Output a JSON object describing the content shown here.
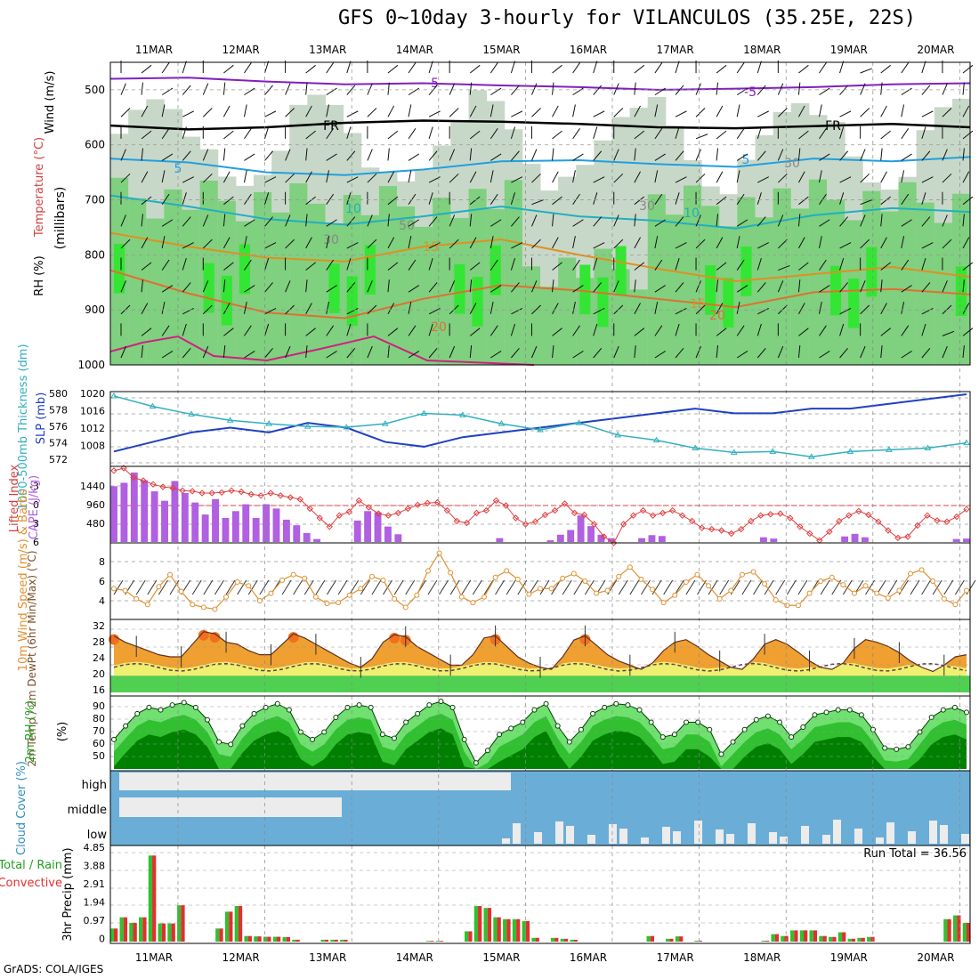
{
  "title": "GFS 0~10day 3-hourly for VILANCULOS (35.25E, 22S)",
  "credit": "GrADS: COLA/IGES",
  "dates": [
    "11MAR",
    "12MAR",
    "13MAR",
    "14MAR",
    "15MAR",
    "16MAR",
    "17MAR",
    "18MAR",
    "19MAR",
    "20MAR"
  ],
  "colors": {
    "grid": "#999999",
    "rh1": "#c8d8c8",
    "rh2": "#7fd07f",
    "rh3": "#33e633",
    "slp": "#2040c0",
    "thick": "#30b0c0",
    "li": "#e04040",
    "cape": "#b060e0",
    "wind": "#e09030",
    "temp_fill": "#f0a030",
    "temp_hot": "#f07020",
    "dew_fill": "#f0f070",
    "low_fill": "#50d050",
    "rh2m_dark": "#008000",
    "cloud_blue": "#6aaed8",
    "cloud_white": "#ececec",
    "precip_green": "#30c030",
    "precip_red": "#e03030",
    "purple": "#8020c0",
    "magenta": "#d02080"
  },
  "chart_data": [
    {
      "id": "upper_air",
      "type": "heatmap",
      "ylabel_parts": [
        "Wind (m/s)",
        "Temperature (°C)",
        "RH (%)"
      ],
      "ylabel_unit": "(millibars)",
      "yticks": [
        500,
        600,
        700,
        800,
        900,
        1000
      ],
      "ylim": [
        1000,
        450
      ],
      "isotherms": [
        {
          "label": "-5",
          "color": "#8020c0",
          "p": [
            480,
            478,
            485,
            490,
            488,
            492,
            495,
            500,
            498,
            495,
            490,
            488
          ]
        },
        {
          "label": "FR",
          "color": "#000000",
          "p": [
            565,
            572,
            568,
            560,
            556,
            558,
            562,
            568,
            570,
            566,
            562,
            568
          ]
        },
        {
          "label": "5",
          "color": "#20a0e0",
          "p": [
            625,
            632,
            650,
            655,
            645,
            630,
            628,
            635,
            640,
            625,
            630,
            622
          ]
        },
        {
          "label": "10",
          "color": "#20b0c0",
          "p": [
            692,
            712,
            735,
            745,
            730,
            712,
            730,
            738,
            752,
            728,
            715,
            722
          ]
        },
        {
          "label": "15",
          "color": "#e09020",
          "p": [
            760,
            785,
            805,
            812,
            785,
            772,
            800,
            825,
            848,
            835,
            822,
            840
          ]
        },
        {
          "label": "20",
          "color": "#e07030",
          "p": [
            828,
            870,
            905,
            915,
            880,
            855,
            865,
            880,
            895,
            868,
            862,
            872
          ]
        }
      ],
      "inline_labels": [
        "-5",
        "-5",
        "FR",
        "FR",
        "5",
        "5",
        "10",
        "10",
        "15",
        "15",
        "20",
        "20",
        "30",
        "30",
        "50",
        "30"
      ]
    },
    {
      "id": "slp_thickness",
      "type": "line",
      "y_left_label": "1000-500mb Thickness (dm)",
      "y_right_label": "SLP (mb)",
      "left_ticks": [
        "580",
        "578",
        "576",
        "574",
        "572"
      ],
      "right_ticks": [
        "1020",
        "1016",
        "1012",
        "1008"
      ],
      "series": [
        {
          "name": "SLP",
          "axis": "right",
          "values": [
            1008,
            1010,
            1012,
            1013,
            1012,
            1014,
            1013,
            1010,
            1009,
            1011,
            1012,
            1013,
            1014,
            1015,
            1016,
            1017,
            1016,
            1016,
            1017,
            1017,
            1018,
            1019,
            1020
          ]
        },
        {
          "name": "Thickness",
          "axis": "left",
          "values": [
            579.8,
            578.6,
            577.7,
            577.0,
            576.6,
            576.3,
            576.2,
            576.6,
            577.8,
            577.6,
            576.6,
            575.9,
            576.7,
            575.3,
            574.7,
            573.8,
            573.3,
            573.4,
            572.8,
            573.4,
            573.6,
            573.8,
            574.4
          ]
        }
      ]
    },
    {
      "id": "instability",
      "type": "bar",
      "y_left_label": "Lifted Index",
      "y_right_label": "CAPE (J/kg)",
      "left_ticks": [
        "-3",
        "0",
        "3",
        "6"
      ],
      "right_ticks": [
        "1440",
        "960",
        "480"
      ],
      "cape": [
        1300,
        1380,
        1620,
        1440,
        1180,
        960,
        1420,
        1140,
        920,
        640,
        1000,
        560,
        720,
        880,
        560,
        880,
        780,
        520,
        390,
        210,
        70,
        0,
        0,
        0,
        500,
        720,
        690,
        360,
        180,
        0,
        0,
        0,
        0,
        0,
        0,
        0,
        0,
        0,
        90,
        0,
        0,
        0,
        0,
        40,
        170,
        280,
        620,
        370,
        170,
        90,
        0,
        0,
        90,
        160,
        140,
        0,
        0,
        0,
        0,
        0,
        0,
        0,
        0,
        0,
        110,
        80,
        0,
        0,
        0,
        0,
        0,
        0,
        130,
        190,
        110,
        0,
        0,
        0,
        0,
        0,
        0,
        0,
        0,
        70,
        80
      ],
      "lifted_index": [
        -5.6,
        -6,
        -4.5,
        -4,
        -3.4,
        -3,
        -2.8,
        -2.4,
        -2.3,
        -2,
        -2,
        -2.1,
        -2.4,
        -2.2,
        -1.8,
        -1.6,
        -2,
        -1.6,
        -1.3,
        -1,
        0.5,
        2,
        3.4,
        1.6,
        1,
        -0.8,
        0.3,
        1.3,
        1.6,
        1.2,
        0.5,
        -0.1,
        -0.4,
        -0.5,
        0.8,
        2.5,
        2.8,
        1.2,
        0.8,
        -0.8,
        0,
        2,
        3,
        2.6,
        1.5,
        0.8,
        -0.3,
        1.2,
        1.5,
        3,
        5,
        6,
        3,
        1.6,
        0.8,
        1.6,
        1.2,
        0.8,
        1.6,
        2.5,
        3.6,
        3.8,
        4,
        4.5,
        3.8,
        2.5,
        1.6,
        1.4,
        1.3,
        2,
        3.4,
        4.5,
        5.6,
        4.2,
        2.5,
        1.6,
        0.9,
        1.5,
        2.6,
        4,
        5.2,
        5,
        3.2,
        1.6,
        2.4,
        2.6,
        1.8,
        0.6
      ]
    },
    {
      "id": "wind10m",
      "type": "line",
      "ylabel": "10m Wind Speed (m/s) & Barbs",
      "yticks": [
        "8",
        "6",
        "4"
      ],
      "values": [
        5.3,
        5.1,
        4.2,
        3.6,
        5.5,
        6.8,
        5,
        3.6,
        3.3,
        3.1,
        4.4,
        6,
        5.6,
        4,
        4.8,
        6.2,
        6.8,
        6.4,
        4.4,
        3.7,
        3.8,
        4.6,
        5.3,
        6.6,
        6.2,
        4.2,
        3.3,
        4.6,
        7.2,
        9.1,
        7,
        4.4,
        3.8,
        4.4,
        6.5,
        7.2,
        6.3,
        4.7,
        5.3,
        5.3,
        6.4,
        6.9,
        6.1,
        4.8,
        5.1,
        6.6,
        7.6,
        6.3,
        5.2,
        3.8,
        4.6,
        6,
        6.8,
        5.6,
        4.2,
        5.1,
        6.8,
        7.1,
        5.8,
        4.1,
        3.5,
        3.5,
        4.8,
        6.1,
        6.5,
        5.7,
        4.8,
        5.6,
        4.8,
        4.3,
        5.1,
        6.9,
        7.3,
        6.1,
        4.2,
        3.6,
        5.1
      ]
    },
    {
      "id": "temp2m",
      "type": "area",
      "ylabel": "2m Temp / 2m DewPt (6hr Min/Max) (°C)",
      "yticks": [
        "32",
        "28",
        "24",
        "20",
        "16"
      ],
      "temp": [
        29.5,
        28,
        27,
        26,
        25,
        24.5,
        24.5,
        27.5,
        30.5,
        30,
        28,
        27.5,
        26,
        25,
        25,
        27.5,
        30,
        29,
        27.5,
        26,
        24.5,
        23,
        22,
        24,
        28,
        29.8,
        29.3,
        27,
        25.5,
        24,
        22.5,
        22.5,
        25,
        29,
        29.5,
        27,
        24.5,
        23,
        22,
        21.5,
        24.5,
        28.5,
        29.5,
        27.3,
        25,
        23.5,
        22.5,
        21.5,
        23,
        26,
        28,
        28.6,
        27,
        25,
        23.5,
        22,
        21.5,
        24,
        27.5,
        28.6,
        27.5,
        25.6,
        23.5,
        22,
        21.5,
        23,
        26.5,
        28.6,
        28,
        27,
        25.5,
        23.5,
        22,
        21,
        22.5,
        24.5,
        25
      ]
    },
    {
      "id": "rh2m",
      "type": "area",
      "ylabel": "2m RH (%)",
      "yticks": [
        "90",
        "80",
        "70",
        "60",
        "50"
      ],
      "values": [
        64,
        75,
        85,
        90,
        88,
        92,
        94,
        90,
        80,
        62,
        60,
        75,
        85,
        90,
        93,
        88,
        70,
        64,
        70,
        82,
        90,
        92,
        90,
        68,
        65,
        78,
        85,
        92,
        95,
        90,
        64,
        45,
        55,
        68,
        73,
        78,
        88,
        93,
        75,
        62,
        72,
        85,
        90,
        93,
        92,
        88,
        78,
        66,
        68,
        78,
        78,
        72,
        52,
        62,
        72,
        80,
        83,
        78,
        66,
        74,
        84,
        86,
        88,
        88,
        84,
        72,
        57,
        56,
        58,
        70,
        82,
        88,
        90,
        86
      ]
    },
    {
      "id": "cloud",
      "type": "area",
      "ylabel": "Cloud Cover (%)",
      "levels": [
        "high",
        "middle",
        "low"
      ]
    },
    {
      "id": "precip",
      "type": "bar",
      "ylabel": "3hr Precip (mm)",
      "legend": [
        "Total / Rain",
        "Convective"
      ],
      "yticks": [
        "4.85",
        "3.88",
        "2.91",
        "1.94",
        "0.97",
        "0"
      ],
      "run_total_label": "Run Total = 36.56",
      "values": [
        0.7,
        1.3,
        1,
        1.3,
        4.6,
        0.97,
        0.97,
        1.94,
        0,
        0,
        0,
        0.7,
        1.6,
        1.9,
        0.3,
        0.28,
        0.26,
        0.26,
        0.24,
        0.1,
        0,
        0,
        0.1,
        0.1,
        0.1,
        0,
        0,
        0,
        0,
        0,
        0,
        0,
        0,
        0.04,
        0.04,
        0,
        0,
        0.55,
        1.9,
        1.8,
        1.3,
        1.2,
        1.2,
        1.1,
        0.2,
        0,
        0.2,
        0.15,
        0.1,
        0,
        0,
        0,
        0,
        0,
        0,
        0,
        0.3,
        0,
        0.15,
        0.28,
        0,
        0.05,
        0,
        0,
        0,
        0,
        0,
        0,
        0.05,
        0.4,
        0.3,
        0.6,
        0.6,
        0.6,
        0.3,
        0.25,
        0.5,
        0.15,
        0.2,
        0.25,
        0,
        0,
        0,
        0,
        0,
        0,
        0,
        1.2,
        1.4,
        1
      ]
    }
  ]
}
